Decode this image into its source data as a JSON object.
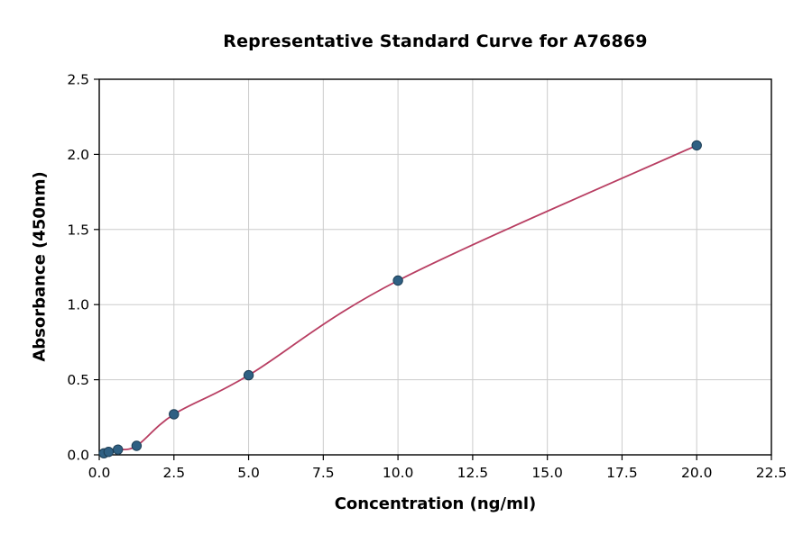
{
  "chart_data": {
    "type": "scatter",
    "title": "Representative Standard Curve for A76869",
    "xlabel": "Concentration (ng/ml)",
    "ylabel": "Absorbance (450nm)",
    "xlim": [
      0,
      22.5
    ],
    "ylim": [
      0,
      2.5
    ],
    "xtick_labels": [
      "0.0",
      "2.5",
      "5.0",
      "7.5",
      "10.0",
      "12.5",
      "15.0",
      "17.5",
      "20.0",
      "22.5"
    ],
    "ytick_labels": [
      "0.0",
      "0.5",
      "1.0",
      "1.5",
      "2.0",
      "2.5"
    ],
    "grid": true,
    "legend": "none",
    "points": {
      "x": [
        0.156,
        0.313,
        0.625,
        1.25,
        2.5,
        5.0,
        10.0,
        20.0
      ],
      "y": [
        0.01,
        0.02,
        0.035,
        0.06,
        0.27,
        0.53,
        1.16,
        2.06
      ]
    },
    "colors": {
      "curve": "#b8filler",
      "marker": "#2f6083",
      "marker_edge": "#1c3d55",
      "grid": "#cccccc",
      "spine": "#000000",
      "text": "#000000"
    }
  }
}
